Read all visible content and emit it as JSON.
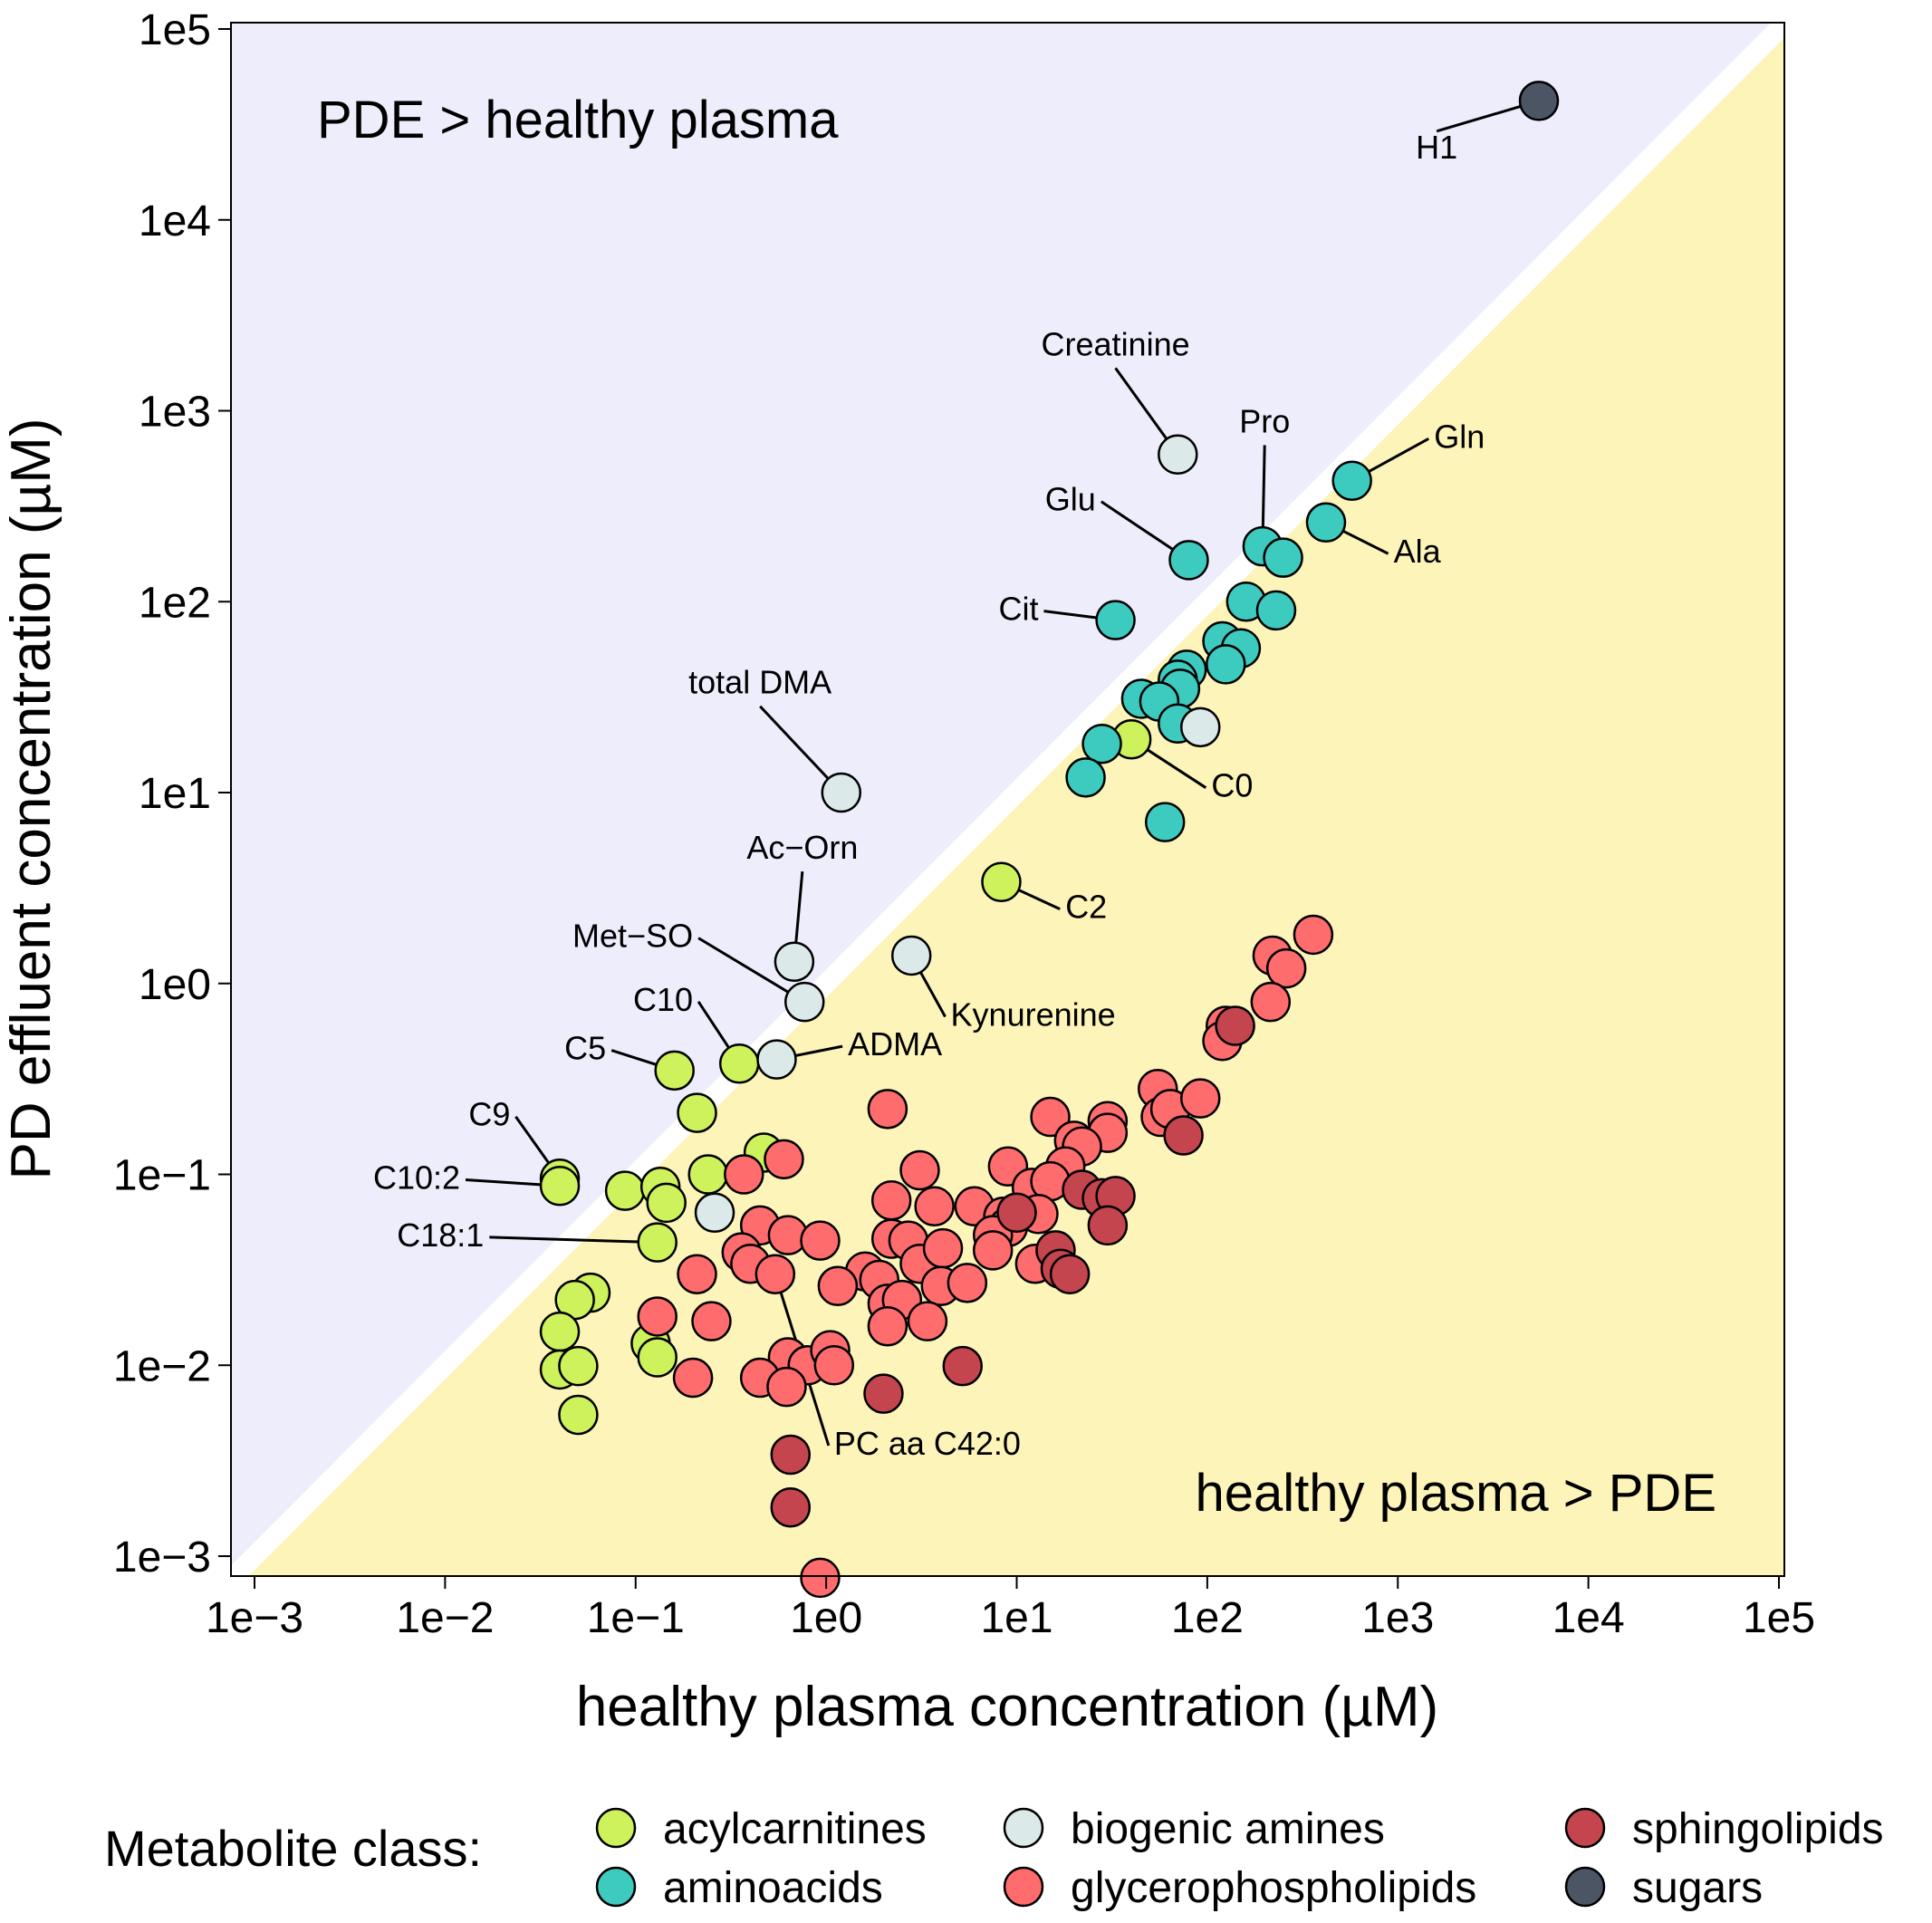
{
  "chart_data": {
    "type": "scatter",
    "scale": "log-log",
    "xlabel": "healthy plasma concentration (µM)",
    "ylabel": "PD effluent concentration (µM)",
    "xlim": [
      0.001,
      100000
    ],
    "ylim": [
      0.00077,
      120000
    ],
    "x_ticks": [
      {
        "value": 0.001,
        "label": "1e−3"
      },
      {
        "value": 0.01,
        "label": "1e−2"
      },
      {
        "value": 0.1,
        "label": "1e−1"
      },
      {
        "value": 1,
        "label": "1e0"
      },
      {
        "value": 10,
        "label": "1e1"
      },
      {
        "value": 100,
        "label": "1e2"
      },
      {
        "value": 1000,
        "label": "1e3"
      },
      {
        "value": 10000,
        "label": "1e4"
      },
      {
        "value": 100000,
        "label": "1e5"
      }
    ],
    "y_ticks": [
      {
        "value": 0.001,
        "label": "1e−3"
      },
      {
        "value": 0.01,
        "label": "1e−2"
      },
      {
        "value": 0.1,
        "label": "1e−1"
      },
      {
        "value": 1,
        "label": "1e0"
      },
      {
        "value": 10,
        "label": "1e1"
      },
      {
        "value": 100,
        "label": "1e2"
      },
      {
        "value": 1000,
        "label": "1e3"
      },
      {
        "value": 10000,
        "label": "1e4"
      },
      {
        "value": 100000,
        "label": "1e5"
      }
    ],
    "regions": [
      {
        "label": "PDE > healthy plasma",
        "color": "#eeedfc",
        "side": "above diagonal",
        "label_position": "top-left"
      },
      {
        "label": "healthy plasma > PDE",
        "color": "#fdf4b9",
        "side": "below diagonal",
        "label_position": "bottom-right"
      }
    ],
    "diagonal": {
      "description": "y = x",
      "color": "#ffffff"
    },
    "legend": {
      "title": "Metabolite class:",
      "position": "bottom",
      "items": [
        {
          "label": "acylcarnitines",
          "color": "#cdf25c"
        },
        {
          "label": "aminoacids",
          "color": "#3ecbbf"
        },
        {
          "label": "biogenic amines",
          "color": "#dbeae8"
        },
        {
          "label": "glycerophospholipids",
          "color": "#fe6c6d"
        },
        {
          "label": "sphingolipids",
          "color": "#c5454f"
        },
        {
          "label": "sugars",
          "color": "#4b5564"
        }
      ]
    },
    "series": [
      {
        "name": "acylcarnitines",
        "color": "#cdf25c",
        "points": [
          {
            "x": 0.04,
            "y": 0.095
          },
          {
            "x": 0.04,
            "y": 0.087
          },
          {
            "x": 0.088,
            "y": 0.082
          },
          {
            "x": 0.135,
            "y": 0.086
          },
          {
            "x": 0.145,
            "y": 0.071
          },
          {
            "x": 0.13,
            "y": 0.044
          },
          {
            "x": 0.21,
            "y": 0.21
          },
          {
            "x": 0.16,
            "y": 0.35
          },
          {
            "x": 0.35,
            "y": 0.38
          },
          {
            "x": 0.24,
            "y": 0.1
          },
          {
            "x": 0.47,
            "y": 0.13
          },
          {
            "x": 0.058,
            "y": 0.024
          },
          {
            "x": 0.048,
            "y": 0.022
          },
          {
            "x": 0.04,
            "y": 0.015
          },
          {
            "x": 0.04,
            "y": 0.0095
          },
          {
            "x": 0.05,
            "y": 0.0099
          },
          {
            "x": 0.05,
            "y": 0.0055
          },
          {
            "x": 0.12,
            "y": 0.013
          },
          {
            "x": 0.13,
            "y": 0.011
          },
          {
            "x": 40,
            "y": 19
          },
          {
            "x": 8.3,
            "y": 3.4
          }
        ]
      },
      {
        "name": "aminoacids",
        "color": "#3ecbbf",
        "points": [
          {
            "x": 33,
            "y": 80
          },
          {
            "x": 80,
            "y": 165
          },
          {
            "x": 195,
            "y": 195
          },
          {
            "x": 250,
            "y": 170
          },
          {
            "x": 575,
            "y": 430
          },
          {
            "x": 420,
            "y": 260
          },
          {
            "x": 160,
            "y": 100
          },
          {
            "x": 230,
            "y": 90
          },
          {
            "x": 120,
            "y": 62
          },
          {
            "x": 150,
            "y": 57
          },
          {
            "x": 125,
            "y": 47
          },
          {
            "x": 78,
            "y": 44
          },
          {
            "x": 70,
            "y": 39
          },
          {
            "x": 72,
            "y": 35
          },
          {
            "x": 45,
            "y": 31
          },
          {
            "x": 56,
            "y": 30
          },
          {
            "x": 70,
            "y": 23
          },
          {
            "x": 28,
            "y": 18
          },
          {
            "x": 23,
            "y": 12
          },
          {
            "x": 60,
            "y": 7
          }
        ]
      },
      {
        "name": "biogenic amines",
        "color": "#dbeae8",
        "points": [
          {
            "x": 70,
            "y": 590
          },
          {
            "x": 1.2,
            "y": 10
          },
          {
            "x": 0.68,
            "y": 1.3
          },
          {
            "x": 0.77,
            "y": 0.8
          },
          {
            "x": 0.55,
            "y": 0.4
          },
          {
            "x": 2.8,
            "y": 1.4
          },
          {
            "x": 0.26,
            "y": 0.063
          },
          {
            "x": 92,
            "y": 22
          }
        ]
      },
      {
        "name": "glycerophospholipids",
        "color": "#fe6c6d",
        "points": [
          {
            "x": 360,
            "y": 1.8
          },
          {
            "x": 220,
            "y": 1.4
          },
          {
            "x": 260,
            "y": 1.2
          },
          {
            "x": 215,
            "y": 0.8
          },
          {
            "x": 125,
            "y": 0.6
          },
          {
            "x": 120,
            "y": 0.5
          },
          {
            "x": 55,
            "y": 0.28
          },
          {
            "x": 57,
            "y": 0.2
          },
          {
            "x": 64,
            "y": 0.22
          },
          {
            "x": 92,
            "y": 0.25
          },
          {
            "x": 30,
            "y": 0.19
          },
          {
            "x": 30,
            "y": 0.165
          },
          {
            "x": 15,
            "y": 0.2
          },
          {
            "x": 20,
            "y": 0.15
          },
          {
            "x": 22,
            "y": 0.14
          },
          {
            "x": 2.1,
            "y": 0.22
          },
          {
            "x": 0.6,
            "y": 0.12
          },
          {
            "x": 0.37,
            "y": 0.1
          },
          {
            "x": 3.1,
            "y": 0.105
          },
          {
            "x": 9,
            "y": 0.11
          },
          {
            "x": 18,
            "y": 0.11
          },
          {
            "x": 12,
            "y": 0.085
          },
          {
            "x": 15,
            "y": 0.092
          },
          {
            "x": 2.2,
            "y": 0.073
          },
          {
            "x": 3.7,
            "y": 0.068
          },
          {
            "x": 6,
            "y": 0.068
          },
          {
            "x": 8.5,
            "y": 0.06
          },
          {
            "x": 9,
            "y": 0.053
          },
          {
            "x": 7.5,
            "y": 0.048
          },
          {
            "x": 13,
            "y": 0.062
          },
          {
            "x": 0.45,
            "y": 0.054
          },
          {
            "x": 0.63,
            "y": 0.048
          },
          {
            "x": 0.93,
            "y": 0.045
          },
          {
            "x": 2.2,
            "y": 0.046
          },
          {
            "x": 2.7,
            "y": 0.045
          },
          {
            "x": 0.36,
            "y": 0.039
          },
          {
            "x": 0.4,
            "y": 0.034
          },
          {
            "x": 0.21,
            "y": 0.03
          },
          {
            "x": 0.54,
            "y": 0.03
          },
          {
            "x": 1.6,
            "y": 0.031
          },
          {
            "x": 1.9,
            "y": 0.028
          },
          {
            "x": 3.1,
            "y": 0.034
          },
          {
            "x": 4.1,
            "y": 0.041
          },
          {
            "x": 7.5,
            "y": 0.04
          },
          {
            "x": 12.5,
            "y": 0.034
          },
          {
            "x": 1.15,
            "y": 0.026
          },
          {
            "x": 4,
            "y": 0.026
          },
          {
            "x": 5.5,
            "y": 0.027
          },
          {
            "x": 2.1,
            "y": 0.021
          },
          {
            "x": 2.5,
            "y": 0.022
          },
          {
            "x": 3.4,
            "y": 0.017
          },
          {
            "x": 0.13,
            "y": 0.018
          },
          {
            "x": 0.25,
            "y": 0.017
          },
          {
            "x": 2.1,
            "y": 0.016
          },
          {
            "x": 0.63,
            "y": 0.011
          },
          {
            "x": 0.8,
            "y": 0.01
          },
          {
            "x": 1.05,
            "y": 0.012
          },
          {
            "x": 0.45,
            "y": 0.0086
          },
          {
            "x": 0.62,
            "y": 0.0077
          },
          {
            "x": 1.1,
            "y": 0.01
          },
          {
            "x": 0.2,
            "y": 0.0086
          },
          {
            "x": 0.93,
            "y": 0.00077
          }
        ]
      },
      {
        "name": "sphingolipids",
        "color": "#c5454f",
        "points": [
          {
            "x": 140,
            "y": 0.6
          },
          {
            "x": 75,
            "y": 0.16
          },
          {
            "x": 10,
            "y": 0.063
          },
          {
            "x": 22,
            "y": 0.083
          },
          {
            "x": 28,
            "y": 0.075
          },
          {
            "x": 33,
            "y": 0.077
          },
          {
            "x": 30,
            "y": 0.054
          },
          {
            "x": 16,
            "y": 0.04
          },
          {
            "x": 17,
            "y": 0.032
          },
          {
            "x": 19,
            "y": 0.03
          },
          {
            "x": 5.2,
            "y": 0.0099
          },
          {
            "x": 2,
            "y": 0.0071
          },
          {
            "x": 0.65,
            "y": 0.0034
          },
          {
            "x": 0.65,
            "y": 0.0018
          }
        ]
      },
      {
        "name": "sugars",
        "color": "#4b5564",
        "points": [
          {
            "x": 5500,
            "y": 42000
          }
        ]
      }
    ],
    "annotations": [
      {
        "text": "H1",
        "point": {
          "x": 5500,
          "y": 42000
        },
        "label_at": {
          "x": 1600,
          "y": 21000
        },
        "anchor": "middle"
      },
      {
        "text": "Creatinine",
        "point": {
          "x": 70,
          "y": 590
        },
        "label_at": {
          "x": 33,
          "y": 1950
        },
        "anchor": "middle"
      },
      {
        "text": "Pro",
        "point": {
          "x": 195,
          "y": 195
        },
        "label_at": {
          "x": 200,
          "y": 770
        },
        "anchor": "middle"
      },
      {
        "text": "Gln",
        "point": {
          "x": 575,
          "y": 430
        },
        "label_at": {
          "x": 1550,
          "y": 640
        },
        "anchor": "start"
      },
      {
        "text": "Glu",
        "point": {
          "x": 80,
          "y": 165
        },
        "label_at": {
          "x": 26,
          "y": 300
        },
        "anchor": "end"
      },
      {
        "text": "Ala",
        "point": {
          "x": 420,
          "y": 260
        },
        "label_at": {
          "x": 950,
          "y": 160
        },
        "anchor": "start"
      },
      {
        "text": "Cit",
        "point": {
          "x": 33,
          "y": 80
        },
        "label_at": {
          "x": 13,
          "y": 80
        },
        "anchor": "end"
      },
      {
        "text": "total DMA",
        "point": {
          "x": 1.2,
          "y": 10
        },
        "label_at": {
          "x": 0.45,
          "y": 33
        },
        "anchor": "middle"
      },
      {
        "text": "C0",
        "point": {
          "x": 40,
          "y": 19
        },
        "label_at": {
          "x": 105,
          "y": 9.5
        },
        "anchor": "start"
      },
      {
        "text": "C2",
        "point": {
          "x": 8.3,
          "y": 3.4
        },
        "label_at": {
          "x": 18,
          "y": 2.2
        },
        "anchor": "start"
      },
      {
        "text": "Ac−Orn",
        "point": {
          "x": 0.68,
          "y": 1.3
        },
        "label_at": {
          "x": 0.75,
          "y": 4.5
        },
        "anchor": "middle"
      },
      {
        "text": "Met−SO",
        "point": {
          "x": 0.77,
          "y": 0.8
        },
        "label_at": {
          "x": 0.2,
          "y": 1.55
        },
        "anchor": "end"
      },
      {
        "text": "Kynurenine",
        "point": {
          "x": 2.8,
          "y": 1.4
        },
        "label_at": {
          "x": 4.5,
          "y": 0.6
        },
        "anchor": "start"
      },
      {
        "text": "C10",
        "point": {
          "x": 0.35,
          "y": 0.38
        },
        "label_at": {
          "x": 0.2,
          "y": 0.72
        },
        "anchor": "end"
      },
      {
        "text": "ADMA",
        "point": {
          "x": 0.55,
          "y": 0.4
        },
        "label_at": {
          "x": 1.3,
          "y": 0.42
        },
        "anchor": "start"
      },
      {
        "text": "C5",
        "point": {
          "x": 0.16,
          "y": 0.35
        },
        "label_at": {
          "x": 0.07,
          "y": 0.4
        },
        "anchor": "end"
      },
      {
        "text": "C9",
        "point": {
          "x": 0.04,
          "y": 0.095
        },
        "label_at": {
          "x": 0.022,
          "y": 0.18
        },
        "anchor": "end"
      },
      {
        "text": "C10:2",
        "point": {
          "x": 0.04,
          "y": 0.087
        },
        "label_at": {
          "x": 0.012,
          "y": 0.084
        },
        "anchor": "end"
      },
      {
        "text": "C18:1",
        "point": {
          "x": 0.13,
          "y": 0.044
        },
        "label_at": {
          "x": 0.016,
          "y": 0.042
        },
        "anchor": "end"
      },
      {
        "text": "PC aa C42:0",
        "point": {
          "x": 0.54,
          "y": 0.03
        },
        "label_at": {
          "x": 1.1,
          "y": 0.0034
        },
        "anchor": "start"
      }
    ]
  }
}
